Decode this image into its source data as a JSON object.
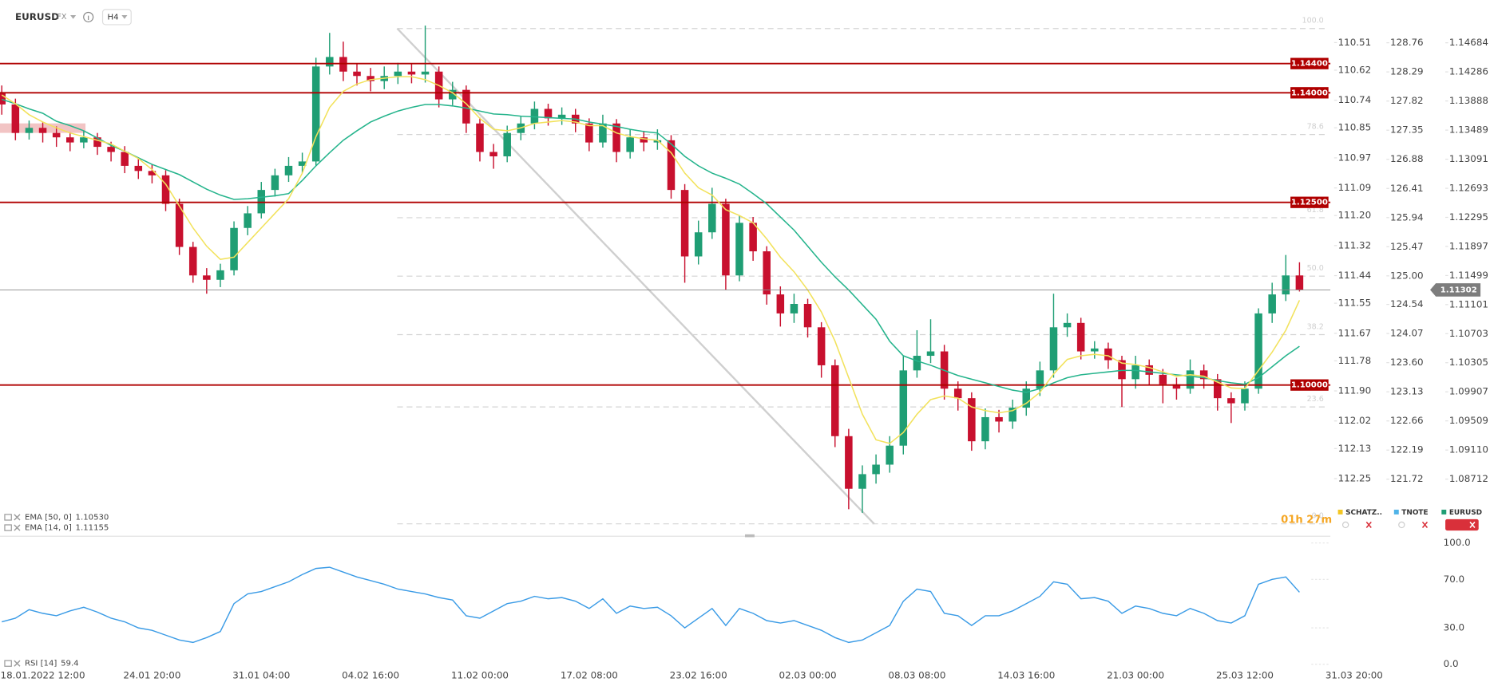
{
  "header": {
    "symbol": "EURUSD",
    "market": "FX",
    "timeframe": "H4"
  },
  "chart_data": [
    {
      "type": "candlestick",
      "timer": "01h 27m",
      "categories": [
        null,
        null,
        null,
        "18.01.2022 12:00",
        null,
        null,
        null,
        null,
        null,
        null,
        null,
        "24.01 20:00",
        null,
        null,
        null,
        null,
        null,
        null,
        null,
        "31.01 04:00",
        null,
        null,
        null,
        null,
        null,
        null,
        null,
        "04.02 16:00",
        null,
        null,
        null,
        null,
        null,
        null,
        null,
        "11.02 00:00",
        null,
        null,
        null,
        null,
        null,
        null,
        null,
        "17.02 08:00",
        null,
        null,
        null,
        null,
        null,
        null,
        null,
        "23.02 16:00",
        null,
        null,
        null,
        null,
        null,
        null,
        null,
        "02.03 00:00",
        null,
        null,
        null,
        null,
        null,
        null,
        null,
        "08.03 08:00",
        null,
        null,
        null,
        null,
        null,
        null,
        null,
        "14.03 16:00",
        null,
        null,
        null,
        null,
        null,
        null,
        null,
        "21.03 00:00",
        null,
        null,
        null,
        null,
        null,
        null,
        null,
        "25.03 12:00",
        null,
        null,
        null,
        null,
        null,
        null,
        null,
        "31.03 20:00"
      ],
      "open": [
        1.14,
        1.1384,
        1.1345,
        1.1352,
        1.1345,
        1.1339,
        1.1332,
        1.1339,
        1.1326,
        1.1319,
        1.13,
        1.1293,
        1.1287,
        1.1248,
        1.1189,
        1.115,
        1.1144,
        1.1157,
        1.1215,
        1.1235,
        1.1267,
        1.1287,
        1.13,
        1.1306,
        1.1436,
        1.1449,
        1.1429,
        1.1423,
        1.1416,
        1.1423,
        1.1429,
        1.1425,
        1.1429,
        1.1391,
        1.1404,
        1.1358,
        1.1319,
        1.1313,
        1.1345,
        1.1358,
        1.1378,
        1.1365,
        1.137,
        1.1358,
        1.1332,
        1.1358,
        1.1319,
        1.1339,
        1.1332,
        1.1335,
        1.1267,
        1.1176,
        1.1209,
        1.1248,
        1.115,
        1.1222,
        1.1183,
        1.1124,
        1.1098,
        1.1111,
        1.1079,
        1.1027,
        1.093,
        1.0858,
        1.0878,
        1.0891,
        1.0917,
        1.102,
        1.104,
        1.1046,
        1.0995,
        1.0982,
        1.0923,
        1.0956,
        1.095,
        1.0969,
        1.0995,
        1.102,
        1.1079,
        1.1085,
        1.1046,
        1.105,
        1.1034,
        1.1008,
        1.1027,
        1.1014,
        1.1001,
        1.0995,
        1.102,
        1.1008,
        1.0982,
        1.0975,
        1.0995,
        1.1098,
        1.1124,
        1.115,
        null,
        null,
        null,
        null
      ],
      "high": [
        1.141,
        1.1392,
        1.1362,
        1.136,
        1.1354,
        1.1346,
        1.1348,
        1.1345,
        1.1333,
        1.1327,
        1.131,
        1.1302,
        1.1294,
        1.1255,
        1.1196,
        1.116,
        1.1166,
        1.1224,
        1.1245,
        1.1278,
        1.1296,
        1.1312,
        1.1318,
        1.1448,
        1.1482,
        1.147,
        1.144,
        1.1434,
        1.1436,
        1.1441,
        1.144,
        1.1492,
        1.1436,
        1.1415,
        1.141,
        1.1366,
        1.133,
        1.1355,
        1.1368,
        1.1388,
        1.1385,
        1.138,
        1.1378,
        1.1365,
        1.137,
        1.1364,
        1.135,
        1.1348,
        1.135,
        1.1342,
        1.1275,
        1.1225,
        1.127,
        1.1255,
        1.1232,
        1.123,
        1.119,
        1.1135,
        1.1125,
        1.1118,
        1.1086,
        1.1035,
        1.094,
        1.089,
        1.0905,
        1.093,
        1.104,
        1.1075,
        1.109,
        1.1055,
        1.1005,
        1.099,
        1.0968,
        1.0966,
        1.098,
        1.1005,
        1.1032,
        1.1125,
        1.1098,
        1.1092,
        1.106,
        1.1058,
        1.104,
        1.104,
        1.1035,
        1.1022,
        1.101,
        1.1035,
        1.1028,
        1.1015,
        1.099,
        1.1005,
        1.1105,
        1.114,
        1.1178,
        1.1168,
        null,
        null,
        null,
        null
      ],
      "low": [
        1.137,
        1.1335,
        1.1336,
        1.1332,
        1.1326,
        1.132,
        1.1324,
        1.1315,
        1.1306,
        1.129,
        1.1282,
        1.1276,
        1.1238,
        1.1178,
        1.114,
        1.1125,
        1.1134,
        1.115,
        1.1205,
        1.1228,
        1.1258,
        1.1278,
        1.129,
        1.13,
        1.1425,
        1.1416,
        1.141,
        1.1402,
        1.1405,
        1.1412,
        1.1413,
        1.1414,
        1.138,
        1.1383,
        1.1345,
        1.1306,
        1.1296,
        1.1305,
        1.1335,
        1.135,
        1.1355,
        1.1356,
        1.1346,
        1.132,
        1.1325,
        1.1305,
        1.131,
        1.132,
        1.1322,
        1.1255,
        1.114,
        1.1165,
        1.12,
        1.113,
        1.1142,
        1.117,
        1.111,
        1.108,
        1.1085,
        1.1065,
        1.101,
        1.0915,
        1.083,
        1.0825,
        1.0865,
        1.088,
        1.0905,
        1.101,
        1.103,
        1.098,
        1.0965,
        1.091,
        1.0912,
        1.0935,
        1.094,
        1.0958,
        1.0985,
        1.101,
        1.1066,
        1.1035,
        1.1036,
        1.1022,
        1.097,
        1.0995,
        1.1,
        1.0975,
        1.098,
        1.0988,
        1.0995,
        1.0965,
        1.0948,
        1.0965,
        1.0988,
        1.1085,
        1.1115,
        1.1128,
        null,
        null,
        null,
        null
      ],
      "close": [
        1.1384,
        1.1345,
        1.1352,
        1.1345,
        1.1339,
        1.1332,
        1.1339,
        1.1326,
        1.1319,
        1.13,
        1.1293,
        1.1287,
        1.1248,
        1.1189,
        1.115,
        1.1144,
        1.1157,
        1.1215,
        1.1235,
        1.1267,
        1.1287,
        1.13,
        1.1306,
        1.1436,
        1.1449,
        1.1429,
        1.1423,
        1.1416,
        1.1423,
        1.1429,
        1.1425,
        1.1429,
        1.1391,
        1.1404,
        1.1358,
        1.1319,
        1.1313,
        1.1345,
        1.1358,
        1.1378,
        1.1365,
        1.137,
        1.1358,
        1.1332,
        1.1358,
        1.1319,
        1.1339,
        1.1332,
        1.1335,
        1.1267,
        1.1176,
        1.1209,
        1.1248,
        1.115,
        1.1222,
        1.1183,
        1.1124,
        1.1098,
        1.1111,
        1.1079,
        1.1027,
        1.093,
        1.0858,
        1.0878,
        1.0891,
        1.0917,
        1.102,
        1.104,
        1.1046,
        1.0995,
        1.0982,
        1.0923,
        1.0956,
        1.095,
        1.0969,
        1.0995,
        1.102,
        1.1079,
        1.1085,
        1.1046,
        1.105,
        1.1034,
        1.1008,
        1.1027,
        1.1014,
        1.1001,
        1.0995,
        1.102,
        1.1008,
        1.0982,
        1.0975,
        1.0995,
        1.1098,
        1.1124,
        1.115,
        1.113,
        null,
        null,
        null,
        null
      ],
      "up_color": "#1f9e74",
      "down_color": "#c8102e",
      "series": [
        {
          "name": "EMA [50, 0]",
          "color": "#25b48c",
          "legend_value": {
            "value": 1.1053,
            "label": "1.10530"
          },
          "values": [
            1.1391,
            1.1385,
            1.1378,
            1.1372,
            1.1361,
            1.1355,
            1.1348,
            1.1338,
            1.1328,
            1.132,
            1.1311,
            1.1302,
            1.1295,
            1.1288,
            1.1278,
            1.1268,
            1.126,
            1.1254,
            1.1255,
            1.1257,
            1.1259,
            1.1262,
            1.128,
            1.13,
            1.1318,
            1.1335,
            1.1348,
            1.136,
            1.1368,
            1.1375,
            1.138,
            1.1384,
            1.1384,
            1.1382,
            1.1379,
            1.1375,
            1.1371,
            1.137,
            1.1368,
            1.1367,
            1.1366,
            1.1365,
            1.1364,
            1.136,
            1.1357,
            1.1354,
            1.135,
            1.1347,
            1.1345,
            1.133,
            1.1313,
            1.13,
            1.129,
            1.1283,
            1.1275,
            1.1262,
            1.1248,
            1.123,
            1.1212,
            1.119,
            1.1168,
            1.1148,
            1.113,
            1.111,
            1.109,
            1.106,
            1.104,
            1.1033,
            1.1027,
            1.102,
            1.1013,
            1.1008,
            1.1003,
            1.0998,
            1.0993,
            1.099,
            1.0995,
            1.1003,
            1.101,
            1.1014,
            1.1016,
            1.1018,
            1.102,
            1.102,
            1.1018,
            1.1016,
            1.1014,
            1.1012,
            1.101,
            1.1006,
            1.1003,
            1.1001,
            1.101,
            1.1025,
            1.104,
            1.1053,
            null,
            null,
            null,
            null
          ]
        },
        {
          "name": "EMA [14, 0]",
          "color": "#f2e25c",
          "legend_value": {
            "value": 1.11155,
            "label": "1.11155"
          },
          "values": [
            1.1397,
            1.1385,
            1.137,
            1.136,
            1.1352,
            1.1345,
            1.134,
            1.1335,
            1.133,
            1.132,
            1.131,
            1.1295,
            1.1275,
            1.1245,
            1.1215,
            1.119,
            1.1172,
            1.1175,
            1.1195,
            1.1215,
            1.1235,
            1.1255,
            1.129,
            1.134,
            1.138,
            1.1402,
            1.1412,
            1.1418,
            1.142,
            1.1422,
            1.1422,
            1.1418,
            1.141,
            1.14,
            1.1385,
            1.1365,
            1.135,
            1.1348,
            1.1352,
            1.1358,
            1.136,
            1.1362,
            1.136,
            1.1355,
            1.1355,
            1.1345,
            1.134,
            1.1337,
            1.1335,
            1.1318,
            1.129,
            1.127,
            1.126,
            1.124,
            1.1232,
            1.1222,
            1.12,
            1.1175,
            1.1155,
            1.113,
            1.11,
            1.106,
            1.101,
            1.096,
            1.0925,
            1.092,
            1.0935,
            1.096,
            1.098,
            1.0985,
            1.0982,
            1.097,
            1.0965,
            1.0962,
            1.0965,
            1.0975,
            1.099,
            1.1015,
            1.1035,
            1.104,
            1.1042,
            1.104,
            1.103,
            1.1028,
            1.1024,
            1.1018,
            1.1012,
            1.1014,
            1.1012,
            1.1004,
            1.0996,
            1.0995,
            1.102,
            1.1045,
            1.1075,
            1.1116,
            null,
            null,
            null,
            null
          ]
        }
      ],
      "ylim": [
        1.0793,
        1.1527
      ],
      "yticks": [
        1.14684,
        1.14286,
        1.13888,
        1.13489,
        1.13091,
        1.12693,
        1.12295,
        1.11897,
        1.11499,
        1.11101,
        1.10703,
        1.10305,
        1.09907,
        1.09509,
        {
          "value": 1.0911,
          "label": "1.09110"
        },
        1.08712
      ],
      "y2lim": [
        112.48,
        110.34
      ],
      "y2ticks": [
        110.51,
        110.62,
        110.74,
        110.85,
        110.97,
        111.09,
        {
          "value": 111.2,
          "label": "111.20"
        },
        111.32,
        111.44,
        111.55,
        111.67,
        111.78,
        {
          "value": 111.9,
          "label": "111.90"
        },
        112.02,
        112.13,
        112.25
      ],
      "y3lim": [
        120.8,
        129.45
      ],
      "y3ticks": [
        128.76,
        128.29,
        127.82,
        127.35,
        126.88,
        126.41,
        125.94,
        125.47,
        {
          "value": 125,
          "label": "125.00"
        },
        124.54,
        124.07,
        {
          "value": 123.6,
          "label": "123.60"
        },
        123.13,
        122.66,
        122.19,
        121.72
      ],
      "level_color": "#b00000",
      "levels": [
        {
          "value": 1.144,
          "label": "1.14400"
        },
        {
          "value": 1.14,
          "label": "1.14000"
        },
        {
          "value": 1.125,
          "label": "1.12500"
        },
        {
          "value": 1.1,
          "label": "1.10000"
        }
      ],
      "last_price": {
        "value": 1.11302,
        "label": "1.11302"
      },
      "fib": {
        "high": 1.1488,
        "low": 1.081,
        "color": "#d4d4d4",
        "levels": [
          {
            "value": 100,
            "label": "100.0"
          },
          78.6,
          61.8,
          {
            "value": 50,
            "label": "50.0"
          },
          38.2,
          23.6,
          {
            "value": 0,
            "label": "0.0"
          }
        ]
      },
      "compare": [
        {
          "name": "SCHATZ..",
          "color": "#f3c623"
        },
        {
          "name": "TNOTE",
          "color": "#4fb3e8"
        },
        {
          "name": "EURUSD",
          "color": "#1f9e74"
        }
      ]
    },
    {
      "type": "line",
      "series": [
        {
          "name": "RSI [14]",
          "color": "#3a9be6",
          "legend_value": 59.4,
          "values": [
            35,
            38,
            45,
            42,
            40,
            44,
            47,
            43,
            38,
            35,
            30,
            28,
            24,
            20,
            18,
            22,
            27,
            50,
            58,
            60,
            64,
            68,
            74,
            79,
            80,
            76,
            72,
            69,
            66,
            62,
            60,
            58,
            55,
            53,
            40,
            38,
            44,
            50,
            52,
            56,
            54,
            55,
            52,
            46,
            54,
            42,
            48,
            46,
            47,
            40,
            30,
            38,
            46,
            32,
            46,
            42,
            36,
            34,
            36,
            32,
            28,
            22,
            18,
            20,
            26,
            32,
            52,
            62,
            60,
            42,
            40,
            32,
            40,
            40,
            44,
            50,
            56,
            68,
            66,
            54,
            55,
            52,
            42,
            48,
            46,
            42,
            40,
            46,
            42,
            36,
            34,
            40,
            66,
            70,
            72,
            59.4,
            null,
            null,
            null,
            null
          ]
        }
      ],
      "ylim": [
        -4,
        104
      ],
      "yticks": [
        {
          "value": 100,
          "label": "100.0"
        },
        {
          "value": 70,
          "label": "70.0"
        },
        {
          "value": 30,
          "label": "30.0"
        },
        {
          "value": 0,
          "label": "0.0"
        }
      ]
    }
  ]
}
